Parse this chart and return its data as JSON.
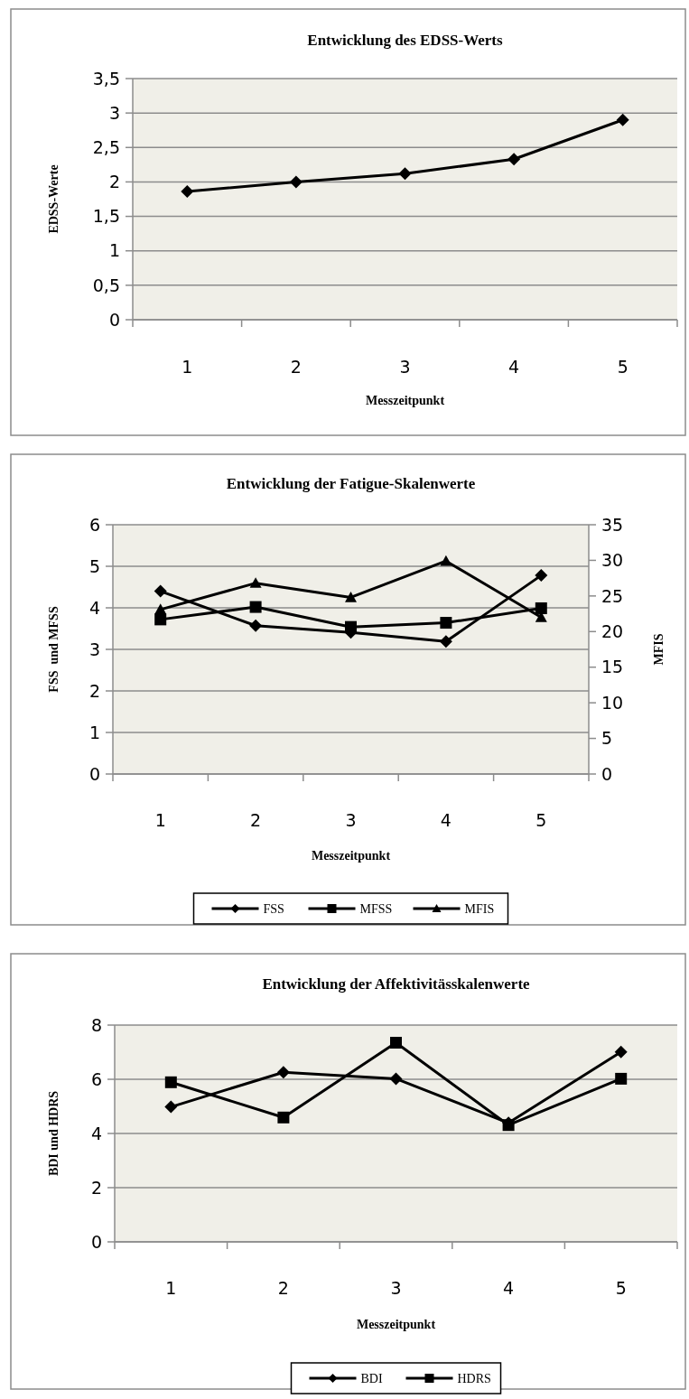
{
  "chart_data": [
    {
      "type": "line",
      "title": "Entwicklung des EDSS-Werts",
      "xlabel": "Messzeitpunkt",
      "ylabel": "EDSS-Werte",
      "categories": [
        "1",
        "2",
        "3",
        "4",
        "5"
      ],
      "ylim": [
        0,
        3.5
      ],
      "yticks": [
        0,
        {
          "value": 0.5,
          "label": "0,5"
        },
        1,
        {
          "value": 1.5,
          "label": "1,5"
        },
        2,
        {
          "value": 2.5,
          "label": "2,5"
        },
        3,
        {
          "value": 3.5,
          "label": "3,5"
        }
      ],
      "grid": "y",
      "marker": "diamond",
      "line_style": "solid",
      "series": [
        {
          "color": "#000000",
          "values": [
            1.86,
            2.0,
            2.12,
            2.33,
            2.9
          ]
        }
      ]
    },
    {
      "type": "line",
      "title": "Entwicklung der Fatigue-Skalenwerte",
      "xlabel": "Messzeitpunkt",
      "ylabel": "FSS  und MFSS",
      "y2label": "MFIS",
      "categories": [
        "1",
        "2",
        "3",
        "4",
        "5"
      ],
      "ylim": [
        0,
        6
      ],
      "yticks": [
        0,
        1,
        2,
        3,
        4,
        5,
        6
      ],
      "y2lim": [
        0,
        35
      ],
      "y2ticks": [
        0,
        5,
        10,
        15,
        20,
        25,
        30,
        35
      ],
      "grid": "y",
      "legend": "bottom",
      "line_style": "solid",
      "series": [
        {
          "name": "FSS",
          "color": "#000000",
          "marker": "diamond",
          "values": [
            4.4,
            3.57,
            3.41,
            3.19,
            4.78
          ]
        },
        {
          "name": "MFSS",
          "color": "#000000",
          "marker": "square",
          "values": [
            3.72,
            4.02,
            3.54,
            3.64,
            3.99
          ]
        },
        {
          "name": "MFIS",
          "color": "#000000",
          "marker": "triangle",
          "axis": "y2",
          "values": [
            23.1,
            26.8,
            24.8,
            29.9,
            22.0
          ]
        }
      ]
    },
    {
      "type": "line",
      "title": "Entwicklung der Affektivitässkalenwerte",
      "xlabel": "Messzeitpunkt",
      "ylabel": "BDI und HDRS",
      "categories": [
        "1",
        "2",
        "3",
        "4",
        "5"
      ],
      "ylim": [
        0,
        8
      ],
      "yticks": [
        0,
        2,
        4,
        6,
        8
      ],
      "grid": "y",
      "legend": "bottom",
      "line_style": "solid",
      "series": [
        {
          "name": "BDI",
          "color": "#000000",
          "marker": "diamond",
          "values": [
            4.98,
            6.26,
            6.02,
            4.39,
            7.01
          ]
        },
        {
          "name": "HDRS",
          "color": "#000000",
          "marker": "square",
          "values": [
            5.89,
            4.59,
            7.35,
            4.31,
            6.02
          ]
        }
      ]
    }
  ]
}
